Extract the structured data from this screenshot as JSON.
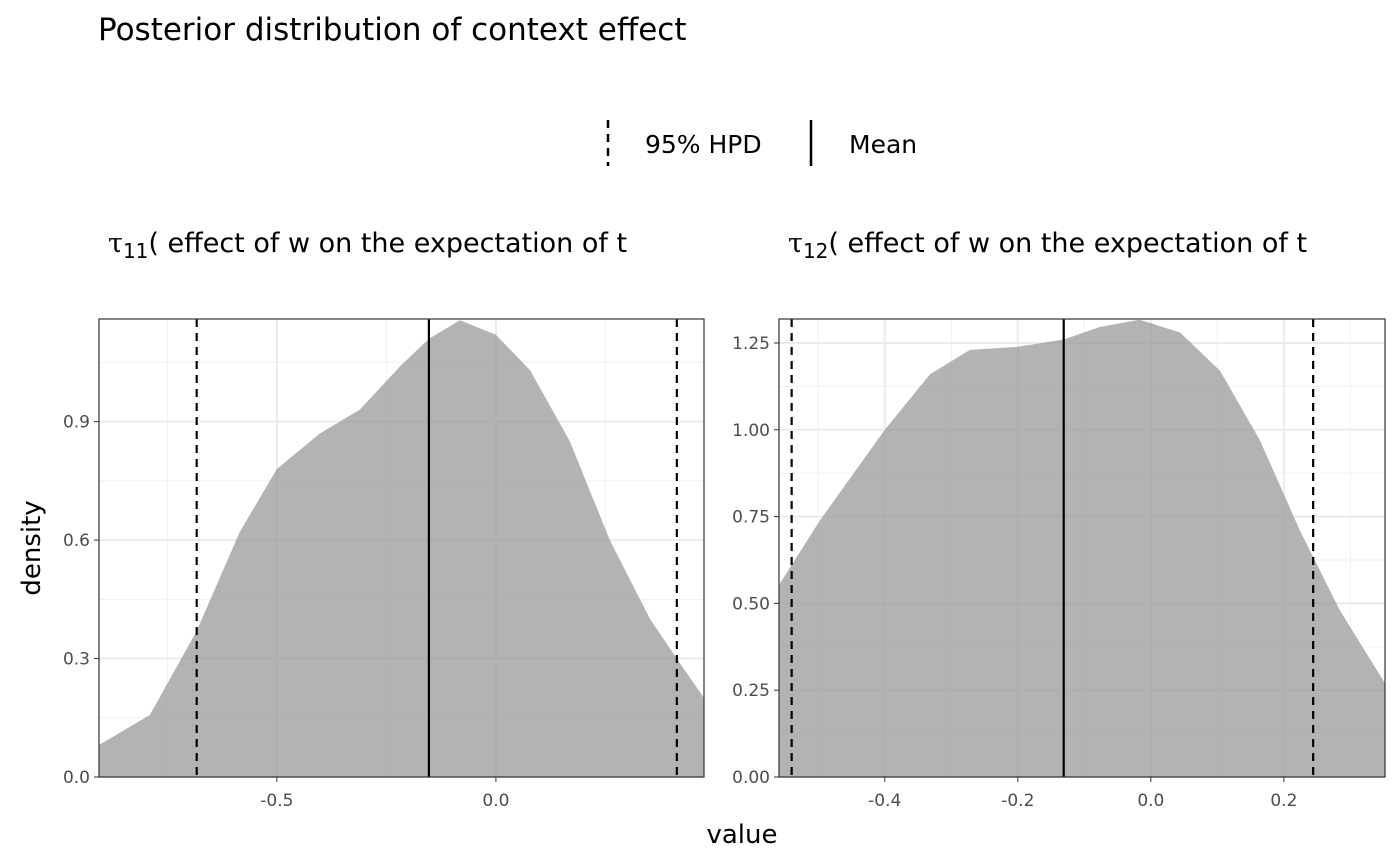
{
  "chart_data": {
    "type": "area",
    "title": "Posterior distribution of context effect",
    "xlabel": "value",
    "ylabel": "density",
    "legend": {
      "placement": "top",
      "entries": [
        {
          "label": "95% HPD",
          "style": "dashed"
        },
        {
          "label": "Mean",
          "style": "solid"
        }
      ]
    },
    "panels": [
      {
        "strip_symbol": "τ",
        "strip_sub": "11",
        "strip_text": "( effect of w on the expectation of t",
        "xlim": [
          -0.906,
          0.475
        ],
        "ylim": [
          0,
          1.16
        ],
        "xticks": [
          -0.5,
          0.0
        ],
        "xtick_labels": [
          "-0.5",
          "0.0"
        ],
        "yticks": [
          0.0,
          0.3,
          0.6,
          0.9
        ],
        "ytick_labels": [
          "0.0",
          "0.3",
          "0.6",
          "0.9"
        ],
        "xminor": [
          -0.75,
          -0.25,
          0.25
        ],
        "yminor": [
          0.15,
          0.45,
          0.75,
          1.05
        ],
        "hpd": [
          -0.683,
          0.413
        ],
        "mean": -0.153,
        "x": [
          -0.906,
          -0.79,
          -0.683,
          -0.585,
          -0.5,
          -0.402,
          -0.311,
          -0.219,
          -0.153,
          -0.082,
          0.0,
          0.078,
          0.169,
          0.26,
          0.352,
          0.413,
          0.475
        ],
        "y": [
          0.081,
          0.157,
          0.37,
          0.62,
          0.78,
          0.87,
          0.93,
          1.04,
          1.11,
          1.157,
          1.12,
          1.03,
          0.85,
          0.6,
          0.4,
          0.3,
          0.2
        ]
      },
      {
        "strip_symbol": "τ",
        "strip_sub": "12",
        "strip_text": "( effect of w on the expectation of t",
        "xlim": [
          -0.559,
          0.352
        ],
        "ylim": [
          0,
          1.319
        ],
        "xticks": [
          -0.4,
          -0.2,
          0.0,
          0.2
        ],
        "xtick_labels": [
          "-0.4",
          "-0.2",
          "0.0",
          "0.2"
        ],
        "yticks": [
          0,
          0.25,
          0.5,
          0.75,
          1.0,
          1.25
        ],
        "ytick_labels": [
          "0.00",
          "0.25",
          "0.50",
          "0.75",
          "1.00",
          "1.25"
        ],
        "xminor": [
          -0.5,
          -0.3,
          -0.1,
          0.1,
          0.3
        ],
        "yminor": [
          0.125,
          0.375,
          0.625,
          0.875,
          1.125
        ],
        "hpd": [
          -0.54,
          0.244
        ],
        "mean": -0.131,
        "x": [
          -0.559,
          -0.497,
          -0.4,
          -0.332,
          -0.272,
          -0.2,
          -0.131,
          -0.077,
          -0.017,
          0.044,
          0.104,
          0.164,
          0.224,
          0.284,
          0.352
        ],
        "y": [
          0.553,
          0.74,
          1.0,
          1.16,
          1.23,
          1.239,
          1.26,
          1.296,
          1.317,
          1.28,
          1.17,
          0.97,
          0.71,
          0.48,
          0.27
        ]
      }
    ]
  }
}
